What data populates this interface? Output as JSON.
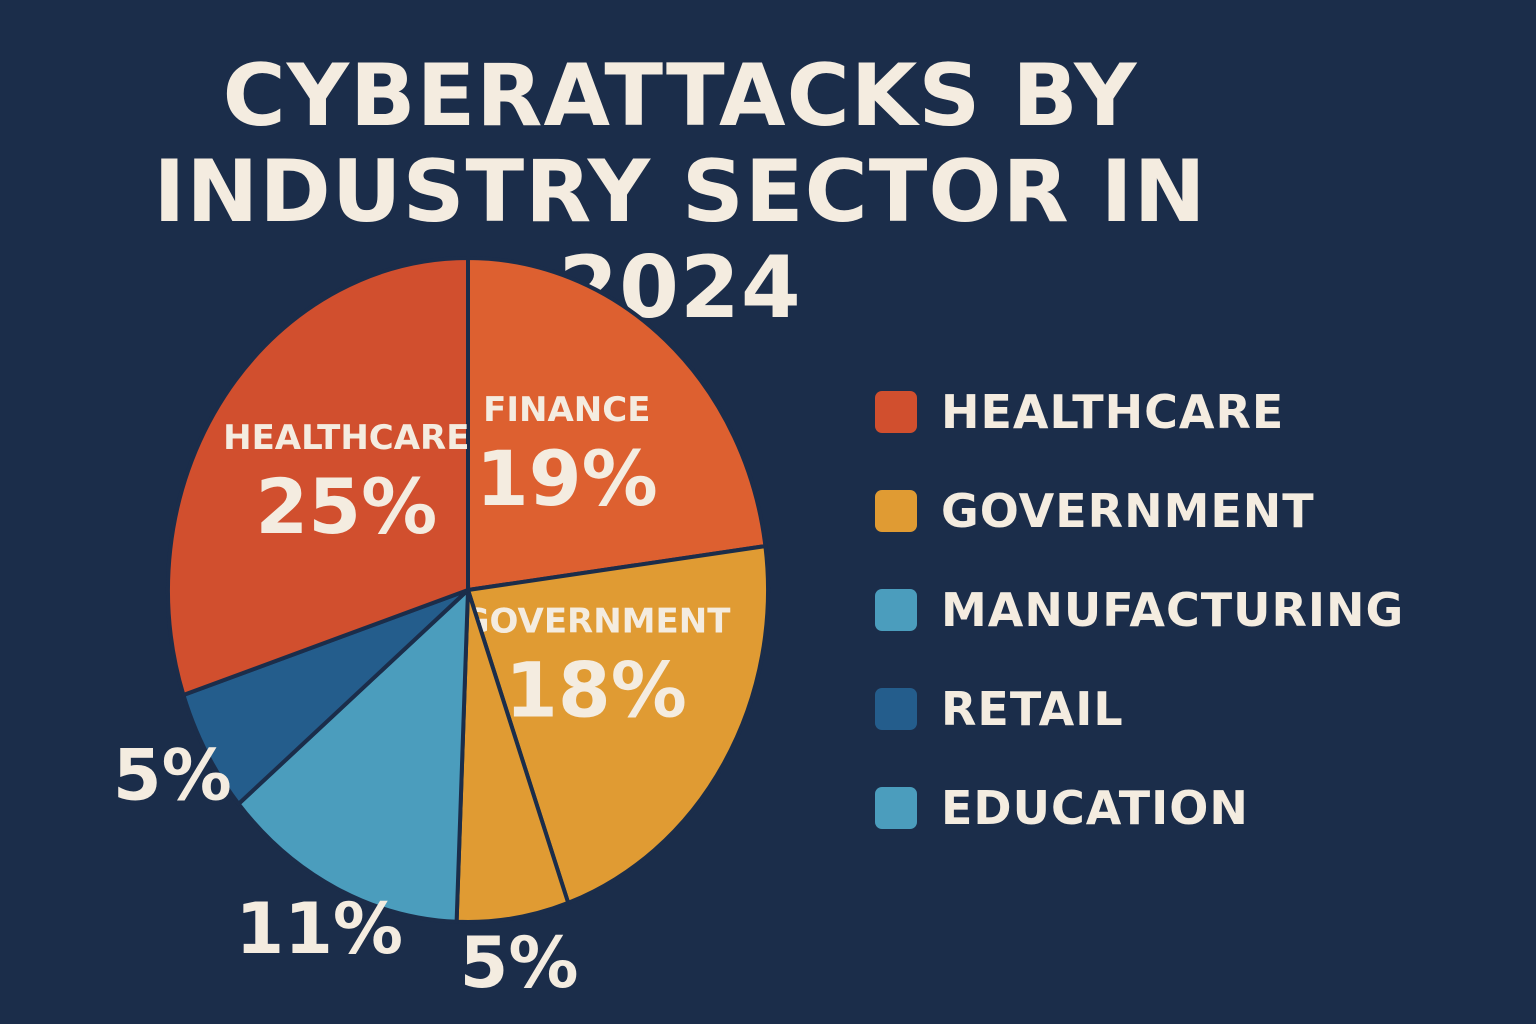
{
  "chart_data": {
    "type": "pie",
    "title": "CYBERATTACKS BY",
    "subtitle": "INDUSTRY SECTOR IN 2024",
    "slices": [
      {
        "name": "FINANCE",
        "value": 19,
        "label": "19%",
        "color": "#dd6030",
        "inside": true
      },
      {
        "name": "GOVERNMENT",
        "value": 18,
        "label": "18%",
        "color": "#e09b33",
        "inside": true
      },
      {
        "name": "",
        "value": 5,
        "label": "5%",
        "color": "#e09b33",
        "inside": false
      },
      {
        "name": "",
        "value": 11,
        "label": "11%",
        "color": "#4b9dbd",
        "inside": false
      },
      {
        "name": "",
        "value": 5,
        "label": "5%",
        "color": "#245d8c",
        "inside": false
      },
      {
        "name": "HEALTHCARE",
        "value": 25,
        "label": "25%",
        "color": "#d14f2e",
        "inside": true
      }
    ],
    "legend": {
      "position": "right",
      "items": [
        {
          "label": "HEALTHCARE",
          "color": "#d14f2e"
        },
        {
          "label": "GOVERNMENT",
          "color": "#e09b33"
        },
        {
          "label": "MANUFACTURING",
          "color": "#4b9dbd"
        },
        {
          "label": "RETAIL",
          "color": "#245d8c"
        },
        {
          "label": "EDUCATION",
          "color": "#4b9dbd"
        }
      ]
    }
  }
}
